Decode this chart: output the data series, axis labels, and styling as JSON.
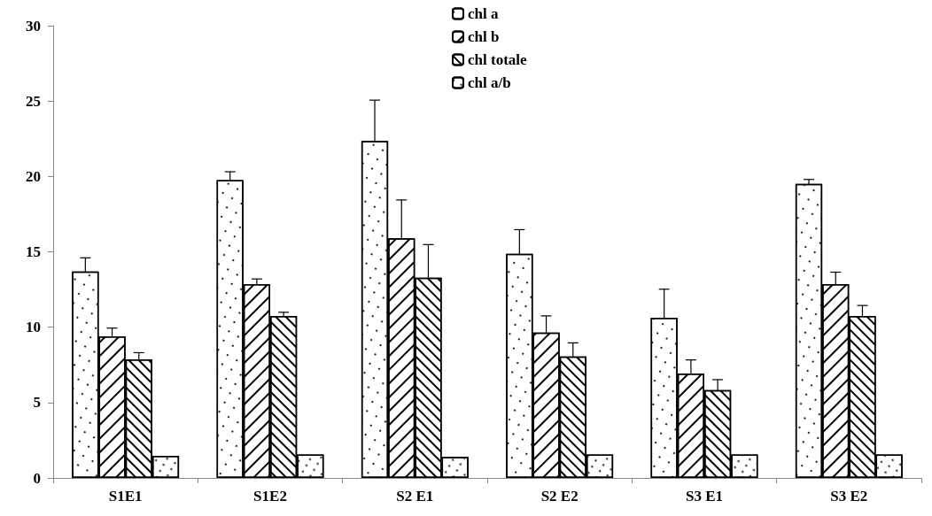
{
  "chart_data": {
    "type": "bar",
    "categories": [
      "S1E1",
      "S1E2",
      "S2 E1",
      "S2 E2",
      "S3 E1",
      "S3 E2"
    ],
    "series": [
      {
        "name": "chl a",
        "color": "#ffffff",
        "values": [
          13.7,
          19.76,
          22.36,
          14.87,
          10.62,
          19.5
        ],
        "errors": [
          0.9,
          0.55,
          2.7,
          1.6,
          1.9,
          0.3
        ]
      },
      {
        "name": "chl b",
        "color": "#ffffff",
        "values": [
          9.39,
          12.85,
          15.89,
          9.65,
          6.93,
          12.85
        ],
        "errors": [
          0.55,
          0.35,
          2.55,
          1.1,
          0.9,
          0.8
        ]
      },
      {
        "name": "chl totale",
        "color": "#ffffff",
        "values": [
          7.86,
          10.74,
          13.28,
          8.06,
          5.82,
          10.74
        ],
        "errors": [
          0.45,
          0.25,
          2.2,
          0.9,
          0.7,
          0.7
        ]
      },
      {
        "name": "chl a/b",
        "color": "#ffffff",
        "values": [
          1.47,
          1.55,
          1.4,
          1.55,
          1.55,
          1.55
        ],
        "errors": [
          null,
          null,
          null,
          null,
          null,
          null
        ]
      }
    ],
    "ylim": [
      0,
      30
    ],
    "yticks": [
      0,
      5,
      10,
      15,
      20,
      25,
      30
    ],
    "grid": false,
    "legend": "top"
  }
}
